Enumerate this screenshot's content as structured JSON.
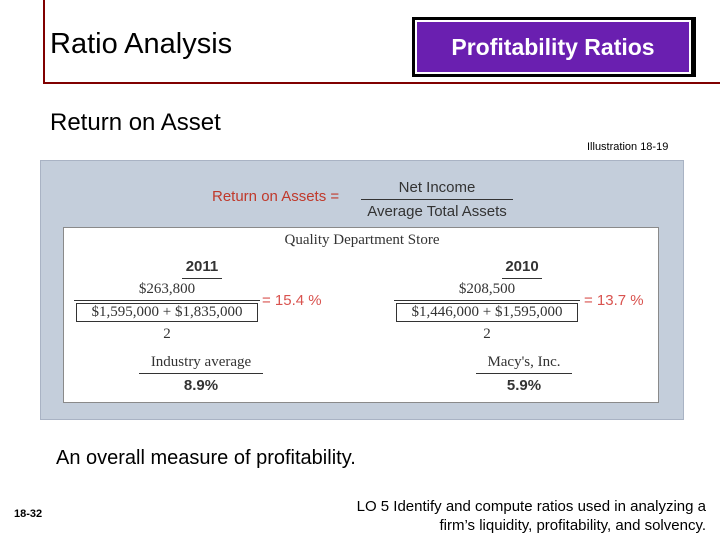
{
  "header": {
    "title": "Ratio Analysis",
    "badge": "Profitability Ratios"
  },
  "subtitle": "Return on Asset",
  "illustration": "Illustration 18-19",
  "figure": {
    "formula": {
      "label": "Return on Assets =",
      "numerator": "Net Income",
      "denominator": "Average Total Assets"
    },
    "company": "Quality Department Store",
    "year1": {
      "year": "2011",
      "numerator": "$263,800",
      "denominator": "$1,595,000 + $1,835,000",
      "divisor": "2",
      "result": "= 15.4 %"
    },
    "year2": {
      "year": "2010",
      "numerator": "$208,500",
      "denominator": "$1,446,000 + $1,595,000",
      "divisor": "2",
      "result": "= 13.7 %"
    },
    "industry": {
      "label": "Industry average",
      "value": "8.9%"
    },
    "competitor": {
      "label": "Macy's, Inc.",
      "value": "5.9%"
    }
  },
  "footer": {
    "description": "An overall measure of profitability.",
    "page_number": "18-32",
    "lo_line1": "LO 5  Identify and compute ratios used in analyzing a",
    "lo_line2": "firm’s liquidity, profitability, and solvency."
  }
}
